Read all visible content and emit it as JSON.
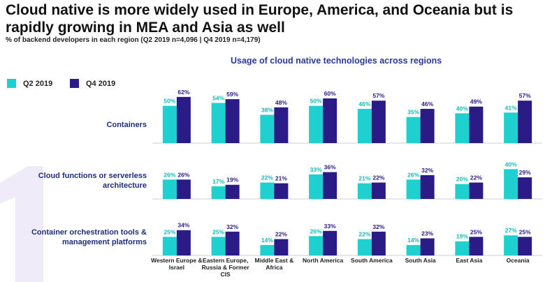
{
  "chart_data": {
    "type": "bar",
    "title": "Cloud native is more widely used in Europe, America, and Oceania but is rapidly growing in MEA and Asia as well",
    "subtitle": "% of backend developers in each region (Q2 2019 n=4,096 | Q4 2019 n=4,179)",
    "chart_title": "Usage of cloud native technologies across regions",
    "categories": [
      "Western Europe & Israel",
      "Eastern Europe, Russia & Former CIS",
      "Middle East & Africa",
      "North America",
      "South America",
      "South Asia",
      "East Asia",
      "Oceania"
    ],
    "series": [
      {
        "name": "Q2 2019",
        "color": "#1fd0d0"
      },
      {
        "name": "Q4 2019",
        "color": "#2a1b86"
      }
    ],
    "ylim": [
      0,
      75
    ],
    "panels": [
      {
        "label": "Containers",
        "values": [
          [
            50,
            54,
            38,
            50,
            46,
            35,
            40,
            41
          ],
          [
            62,
            59,
            48,
            60,
            57,
            46,
            49,
            57
          ]
        ],
        "value_labels": [
          [
            "50%",
            "54%",
            "38%",
            "50%",
            "46%",
            "35%",
            "40%",
            "41%"
          ],
          [
            "62%",
            "59%",
            "48%",
            "60%",
            "57%",
            "46%",
            "49%",
            "57%"
          ]
        ]
      },
      {
        "label": "Cloud functions or serverless architecture",
        "values": [
          [
            26,
            17,
            22,
            33,
            21,
            26,
            20,
            40
          ],
          [
            26,
            19,
            21,
            36,
            22,
            32,
            22,
            29
          ]
        ],
        "value_labels": [
          [
            "26%",
            "17%",
            "22%",
            "33%",
            "21%",
            "26%",
            "20%",
            "40%"
          ],
          [
            "26%",
            "19%",
            "21%",
            "36%",
            "22%",
            "32%",
            "22%",
            "29%"
          ]
        ]
      },
      {
        "label": "Container orchestration tools & management platforms",
        "values": [
          [
            25,
            25,
            14,
            26,
            22,
            14,
            19,
            27
          ],
          [
            34,
            32,
            22,
            33,
            32,
            23,
            25,
            25
          ]
        ],
        "value_labels": [
          [
            "25%",
            "25%",
            "14%",
            "26%",
            "22%",
            "14%",
            "19%",
            "27%"
          ],
          [
            "34%",
            "32%",
            "22%",
            "33%",
            "32%",
            "23%",
            "25%",
            "25%"
          ]
        ]
      }
    ]
  }
}
